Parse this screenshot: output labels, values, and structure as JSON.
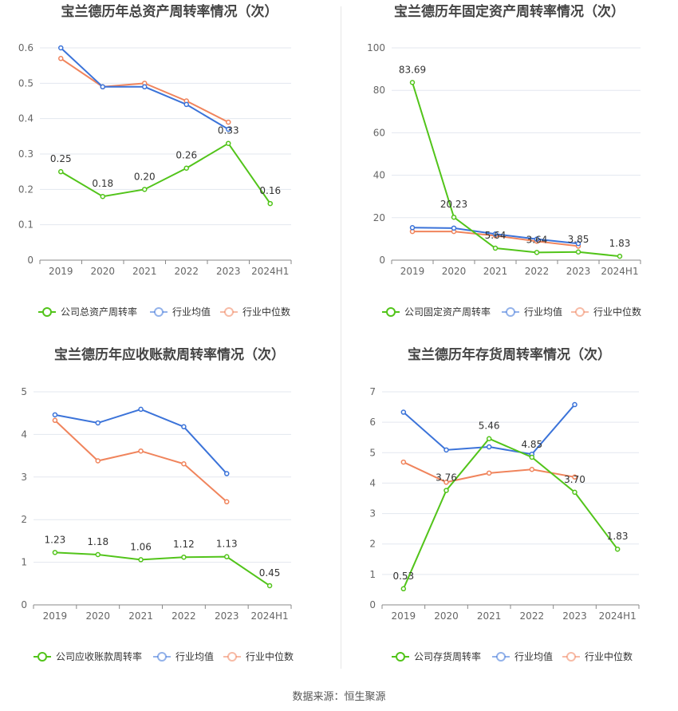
{
  "colors": {
    "company": "#52c41a",
    "avg": "#3b73d9",
    "median": "#f0845c",
    "grid": "#e3e7ef",
    "axis": "#666666",
    "title": "#444444"
  },
  "source_label": "数据来源：恒生聚源",
  "chart_data": [
    {
      "type": "line",
      "title": "宝兰德历年总资产周转率情况（次）",
      "categories": [
        "2019",
        "2020",
        "2021",
        "2022",
        "2023",
        "2024H1"
      ],
      "ylim": [
        0,
        0.6
      ],
      "yticks": [
        "0",
        "0.1",
        "0.2",
        "0.3",
        "0.4",
        "0.5",
        "0.6"
      ],
      "legend_position": "bottom",
      "series": [
        {
          "name": "公司总资产周转率",
          "role": "company",
          "values": [
            0.25,
            0.18,
            0.2,
            0.26,
            0.33,
            0.16
          ],
          "labels": [
            "0.25",
            "0.18",
            "0.20",
            "0.26",
            "0.33",
            "0.16"
          ]
        },
        {
          "name": "行业均值",
          "role": "avg",
          "values": [
            0.6,
            0.49,
            0.49,
            0.44,
            0.37,
            null
          ]
        },
        {
          "name": "行业中位数",
          "role": "median",
          "values": [
            0.57,
            0.49,
            0.5,
            0.45,
            0.39,
            null
          ]
        }
      ]
    },
    {
      "type": "line",
      "title": "宝兰德历年固定资产周转率情况（次）",
      "categories": [
        "2019",
        "2020",
        "2021",
        "2022",
        "2023",
        "2024H1"
      ],
      "ylim": [
        0,
        100
      ],
      "yticks": [
        "0",
        "20",
        "40",
        "60",
        "80",
        "100"
      ],
      "legend_position": "bottom",
      "series": [
        {
          "name": "公司固定资产周转率",
          "role": "company",
          "values": [
            83.69,
            20.23,
            5.64,
            3.64,
            3.85,
            1.83
          ],
          "labels": [
            "83.69",
            "20.23",
            "5.64",
            "3.64",
            "3.85",
            "1.83"
          ]
        },
        {
          "name": "行业均值",
          "role": "avg",
          "values": [
            15.3,
            15.1,
            12.3,
            9.9,
            7.8,
            null
          ]
        },
        {
          "name": "行业中位数",
          "role": "median",
          "values": [
            13.5,
            13.5,
            11.5,
            8.9,
            6.6,
            null
          ]
        }
      ]
    },
    {
      "type": "line",
      "title": "宝兰德历年应收账款周转率情况（次）",
      "categories": [
        "2019",
        "2020",
        "2021",
        "2022",
        "2023",
        "2024H1"
      ],
      "ylim": [
        0,
        5
      ],
      "yticks": [
        "0",
        "1",
        "2",
        "3",
        "4",
        "5"
      ],
      "legend_position": "bottom",
      "series": [
        {
          "name": "公司应收账款周转率",
          "role": "company",
          "values": [
            1.23,
            1.18,
            1.06,
            1.12,
            1.13,
            0.45
          ],
          "labels": [
            "1.23",
            "1.18",
            "1.06",
            "1.12",
            "1.13",
            "0.45"
          ]
        },
        {
          "name": "行业均值",
          "role": "avg",
          "values": [
            4.46,
            4.27,
            4.59,
            4.18,
            3.08,
            null
          ]
        },
        {
          "name": "行业中位数",
          "role": "median",
          "values": [
            4.33,
            3.38,
            3.61,
            3.31,
            2.42,
            null
          ]
        }
      ]
    },
    {
      "type": "line",
      "title": "宝兰德历年存货周转率情况（次）",
      "categories": [
        "2019",
        "2020",
        "2021",
        "2022",
        "2023",
        "2024H1"
      ],
      "ylim": [
        0,
        7
      ],
      "yticks": [
        "0",
        "1",
        "2",
        "3",
        "4",
        "5",
        "6",
        "7"
      ],
      "legend_position": "bottom",
      "series": [
        {
          "name": "公司存货周转率",
          "role": "company",
          "values": [
            0.53,
            3.76,
            5.46,
            4.85,
            3.7,
            1.83
          ],
          "labels": [
            "0.53",
            "3.76",
            "5.46",
            "4.85",
            "3.70",
            "1.83"
          ]
        },
        {
          "name": "行业均值",
          "role": "avg",
          "values": [
            6.33,
            5.09,
            5.19,
            4.95,
            6.58,
            null
          ]
        },
        {
          "name": "行业中位数",
          "role": "median",
          "values": [
            4.69,
            4.03,
            4.33,
            4.45,
            4.2,
            null
          ]
        }
      ]
    }
  ]
}
